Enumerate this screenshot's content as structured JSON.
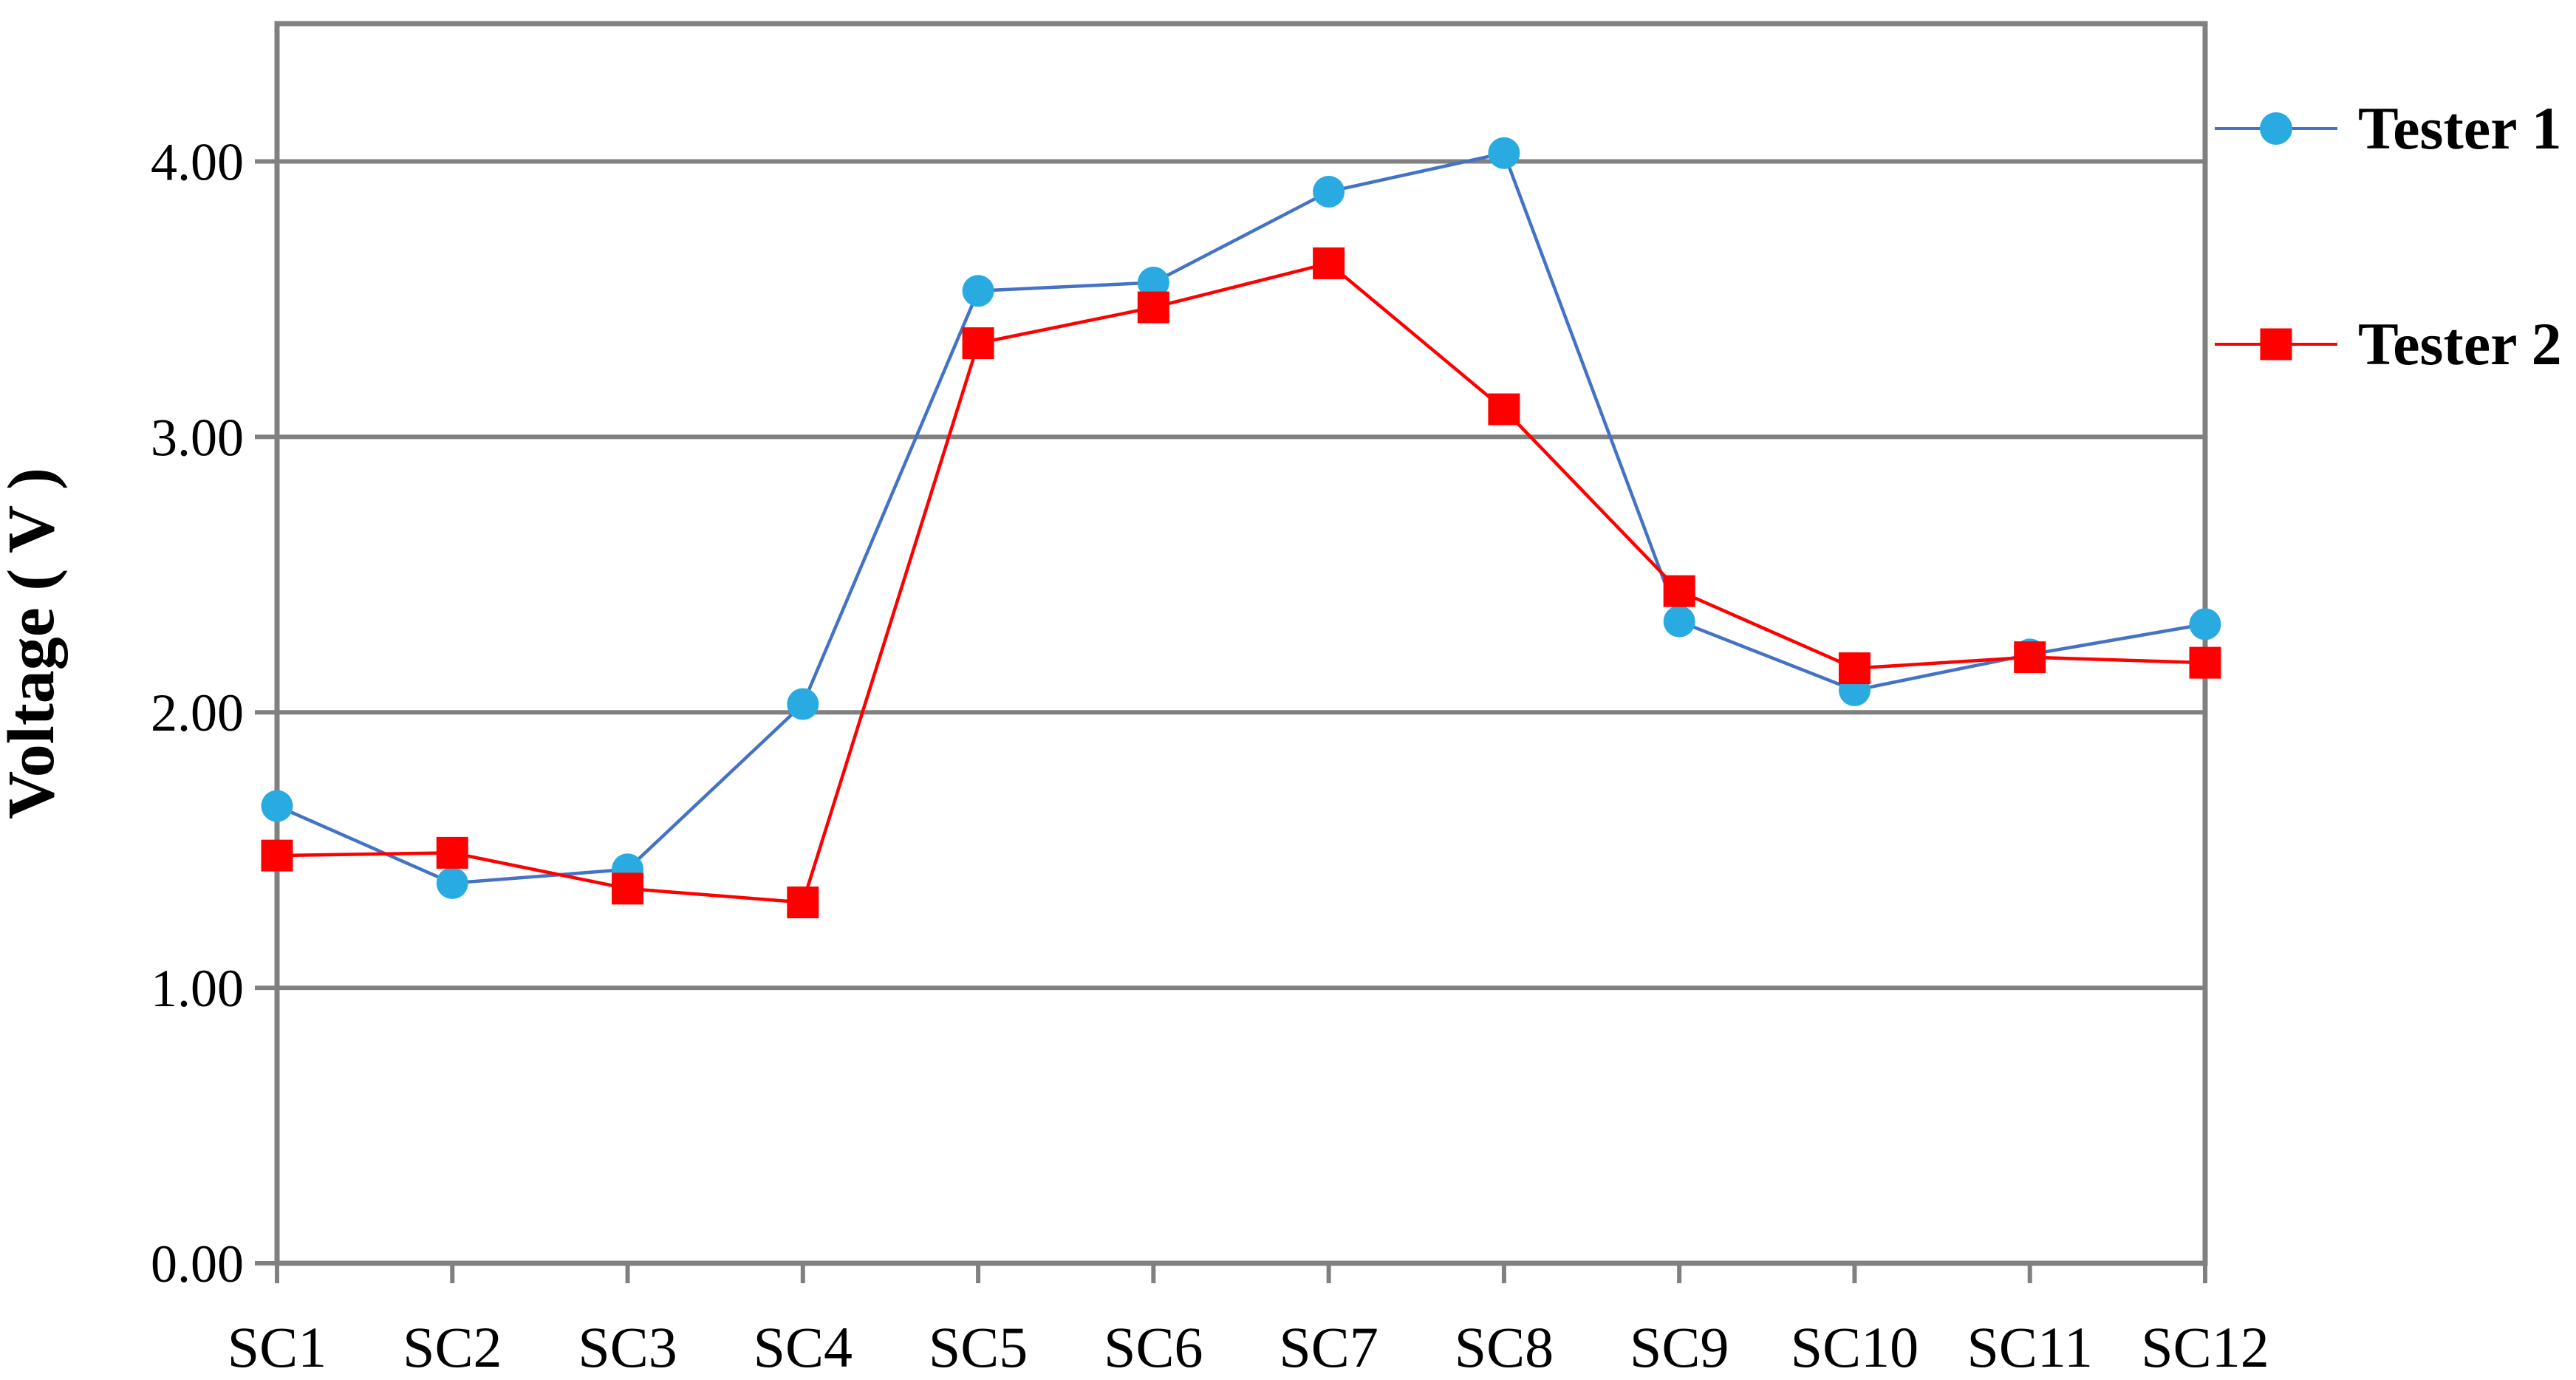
{
  "colors": {
    "tester1_line": "#4472C4",
    "tester1_marker": "#29ABE2",
    "tester2_line": "#FF0000",
    "tester2_marker": "#FF0000",
    "axis": "#808080",
    "grid": "#808080",
    "text": "#000000",
    "background": "#FFFFFF"
  },
  "chart_data": {
    "type": "line",
    "categories": [
      "SC1",
      "SC2",
      "SC3",
      "SC4",
      "SC5",
      "SC6",
      "SC7",
      "SC8",
      "SC9",
      "SC10",
      "SC11",
      "SC12"
    ],
    "series": [
      {
        "name": "Tester 1",
        "marker": "circle",
        "line_color": "#4472C4",
        "marker_color": "#29ABE2",
        "values": [
          1.66,
          1.38,
          1.43,
          2.03,
          3.53,
          3.56,
          3.89,
          4.03,
          2.33,
          2.08,
          2.21,
          2.32
        ]
      },
      {
        "name": "Tester 2",
        "marker": "square",
        "line_color": "#FF0000",
        "marker_color": "#FF0000",
        "values": [
          1.48,
          1.49,
          1.36,
          1.31,
          3.34,
          3.47,
          3.63,
          3.1,
          2.44,
          2.16,
          2.2,
          2.18
        ]
      }
    ],
    "title": "",
    "xlabel": "",
    "ylabel": "Voltage ( V )",
    "ylim": [
      0,
      4.5
    ],
    "ytick_interval": 1.0,
    "ytick_labels": [
      "0.00",
      "1.00",
      "2.00",
      "3.00",
      "4.00"
    ],
    "grid": true,
    "legend_position": "right-outside"
  }
}
